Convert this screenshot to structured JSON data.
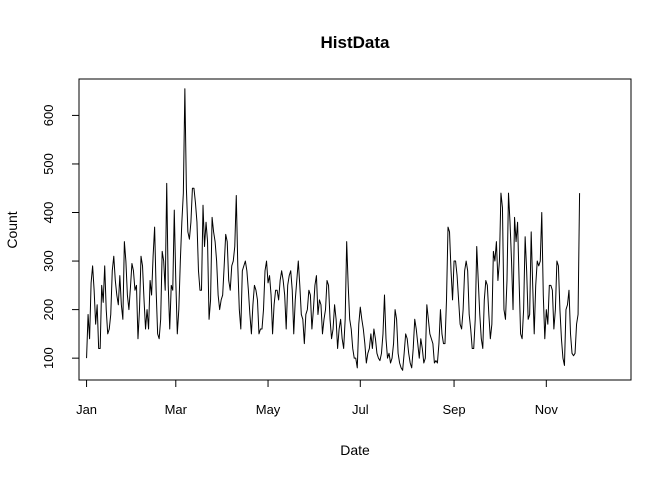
{
  "chart_data": {
    "type": "line",
    "title": "HistData",
    "xlabel": "Date",
    "ylabel": "Count",
    "x_start": "Jan 1",
    "x_ticks": [
      {
        "label": "Jan",
        "day": 0
      },
      {
        "label": "Mar",
        "day": 59
      },
      {
        "label": "May",
        "day": 120
      },
      {
        "label": "Jul",
        "day": 181
      },
      {
        "label": "Sep",
        "day": 243
      },
      {
        "label": "Nov",
        "day": 304
      }
    ],
    "y_ticks": [
      100,
      200,
      300,
      400,
      500,
      600
    ],
    "xlim": [
      -5,
      360
    ],
    "ylim": [
      55,
      675
    ],
    "grid": false,
    "series": [
      {
        "values": [
          100,
          190,
          140,
          255,
          290,
          240,
          170,
          210,
          120,
          120,
          250,
          215,
          290,
          200,
          150,
          160,
          190,
          280,
          310,
          260,
          230,
          210,
          270,
          210,
          180,
          340,
          300,
          230,
          200,
          245,
          295,
          280,
          240,
          250,
          140,
          200,
          310,
          290,
          220,
          160,
          200,
          160,
          260,
          230,
          310,
          370,
          240,
          150,
          140,
          180,
          320,
          300,
          240,
          460,
          250,
          160,
          250,
          240,
          405,
          260,
          150,
          200,
          300,
          380,
          440,
          655,
          450,
          360,
          345,
          380,
          450,
          450,
          420,
          380,
          280,
          240,
          240,
          415,
          330,
          380,
          340,
          180,
          220,
          390,
          360,
          340,
          300,
          230,
          200,
          220,
          230,
          290,
          355,
          340,
          260,
          240,
          290,
          300,
          330,
          435,
          290,
          200,
          160,
          280,
          290,
          300,
          280,
          240,
          190,
          150,
          210,
          250,
          240,
          220,
          150,
          160,
          160,
          200,
          280,
          300,
          255,
          270,
          230,
          150,
          210,
          240,
          240,
          220,
          260,
          280,
          260,
          230,
          160,
          250,
          270,
          280,
          240,
          150,
          220,
          260,
          300,
          250,
          190,
          180,
          130,
          190,
          200,
          240,
          230,
          160,
          200,
          250,
          270,
          190,
          220,
          210,
          150,
          180,
          200,
          260,
          250,
          180,
          140,
          160,
          210,
          180,
          120,
          160,
          180,
          140,
          120,
          180,
          340,
          250,
          180,
          160,
          120,
          100,
          100,
          80,
          170,
          205,
          180,
          160,
          130,
          90,
          110,
          120,
          150,
          120,
          160,
          140,
          110,
          100,
          95,
          110,
          150,
          230,
          140,
          100,
          110,
          90,
          100,
          130,
          200,
          180,
          110,
          90,
          80,
          75,
          110,
          150,
          140,
          110,
          90,
          80,
          120,
          180,
          160,
          130,
          100,
          140,
          120,
          90,
          100,
          210,
          180,
          150,
          140,
          130,
          90,
          95,
          90,
          130,
          200,
          150,
          130,
          130,
          220,
          370,
          360,
          280,
          220,
          300,
          300,
          270,
          220,
          170,
          160,
          200,
          280,
          300,
          280,
          190,
          160,
          120,
          120,
          180,
          330,
          260,
          190,
          140,
          120,
          220,
          260,
          250,
          190,
          140,
          170,
          320,
          300,
          340,
          260,
          300,
          440,
          410,
          200,
          180,
          260,
          440,
          380,
          300,
          200,
          390,
          340,
          380,
          260,
          150,
          140,
          200,
          350,
          280,
          180,
          190,
          360,
          250,
          150,
          250,
          300,
          290,
          300,
          400,
          230,
          140,
          200,
          170,
          250,
          250,
          240,
          160,
          200,
          300,
          290,
          200,
          140,
          100,
          85,
          200,
          210,
          240,
          150,
          110,
          105,
          110,
          170,
          190,
          440
        ]
      }
    ]
  }
}
